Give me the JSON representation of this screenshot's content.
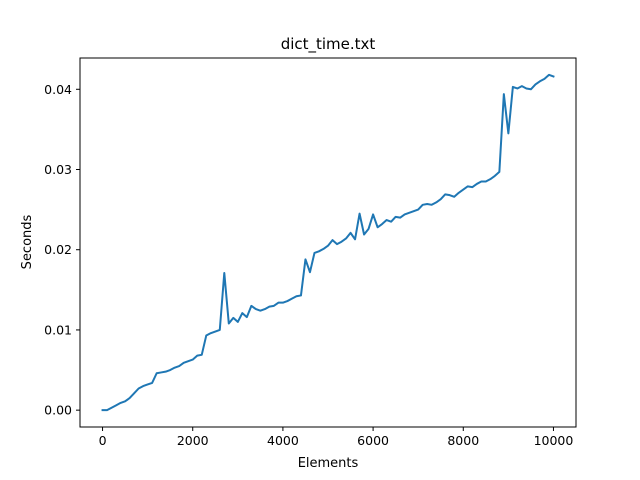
{
  "chart_data": {
    "type": "line",
    "title": "dict_time.txt",
    "xlabel": "Elements",
    "ylabel": "Seconds",
    "xlim": [
      -500,
      10500
    ],
    "ylim": [
      -0.0021,
      0.0439
    ],
    "x_ticks": [
      {
        "value": 0,
        "label": "0"
      },
      {
        "value": 2000,
        "label": "2000"
      },
      {
        "value": 4000,
        "label": "4000"
      },
      {
        "value": 6000,
        "label": "6000"
      },
      {
        "value": 8000,
        "label": "8000"
      },
      {
        "value": 10000,
        "label": "10000"
      }
    ],
    "y_ticks": [
      {
        "value": 0.0,
        "label": "0.00"
      },
      {
        "value": 0.01,
        "label": "0.01"
      },
      {
        "value": 0.02,
        "label": "0.02"
      },
      {
        "value": 0.03,
        "label": "0.03"
      },
      {
        "value": 0.04,
        "label": "0.04"
      }
    ],
    "grid": false,
    "series": [
      {
        "name": "dict_time",
        "color": "#1f77b4",
        "x": [
          0,
          100,
          200,
          300,
          400,
          500,
          600,
          700,
          800,
          900,
          1000,
          1100,
          1200,
          1300,
          1400,
          1500,
          1600,
          1700,
          1800,
          1900,
          2000,
          2100,
          2200,
          2300,
          2400,
          2500,
          2600,
          2700,
          2800,
          2900,
          3000,
          3100,
          3200,
          3300,
          3400,
          3500,
          3600,
          3700,
          3800,
          3900,
          4000,
          4100,
          4200,
          4300,
          4400,
          4500,
          4600,
          4700,
          4800,
          4900,
          5000,
          5100,
          5200,
          5300,
          5400,
          5500,
          5600,
          5700,
          5800,
          5900,
          6000,
          6100,
          6200,
          6300,
          6400,
          6500,
          6600,
          6700,
          6800,
          6900,
          7000,
          7100,
          7200,
          7300,
          7400,
          7500,
          7600,
          7700,
          7800,
          7900,
          8000,
          8100,
          8200,
          8300,
          8400,
          8500,
          8600,
          8700,
          8800,
          8900,
          9000,
          9100,
          9200,
          9300,
          9400,
          9500,
          9600,
          9700,
          9800,
          9900,
          10000
        ],
        "y": [
          0.0,
          0.0,
          0.0003,
          0.0006,
          0.0009,
          0.0011,
          0.0015,
          0.0021,
          0.0027,
          0.003,
          0.0032,
          0.0034,
          0.0046,
          0.0047,
          0.0048,
          0.005,
          0.0053,
          0.0055,
          0.0059,
          0.0061,
          0.0063,
          0.0068,
          0.0069,
          0.0093,
          0.0096,
          0.0098,
          0.01,
          0.0171,
          0.0108,
          0.0115,
          0.011,
          0.0121,
          0.0116,
          0.013,
          0.0126,
          0.0124,
          0.0126,
          0.0129,
          0.013,
          0.0134,
          0.0134,
          0.0136,
          0.0139,
          0.0142,
          0.0143,
          0.0188,
          0.0172,
          0.0196,
          0.0198,
          0.0201,
          0.0205,
          0.0212,
          0.0207,
          0.021,
          0.0214,
          0.0221,
          0.0213,
          0.0245,
          0.0219,
          0.0226,
          0.0244,
          0.0228,
          0.0232,
          0.0237,
          0.0235,
          0.0241,
          0.024,
          0.0244,
          0.0246,
          0.0248,
          0.025,
          0.0256,
          0.0257,
          0.0256,
          0.0259,
          0.0263,
          0.0269,
          0.0268,
          0.0266,
          0.0271,
          0.0275,
          0.0279,
          0.0278,
          0.0282,
          0.0285,
          0.0285,
          0.0288,
          0.0292,
          0.0297,
          0.0394,
          0.0345,
          0.0403,
          0.0401,
          0.0404,
          0.0401,
          0.04,
          0.0406,
          0.041,
          0.0413,
          0.0418,
          0.0416
        ]
      }
    ]
  }
}
